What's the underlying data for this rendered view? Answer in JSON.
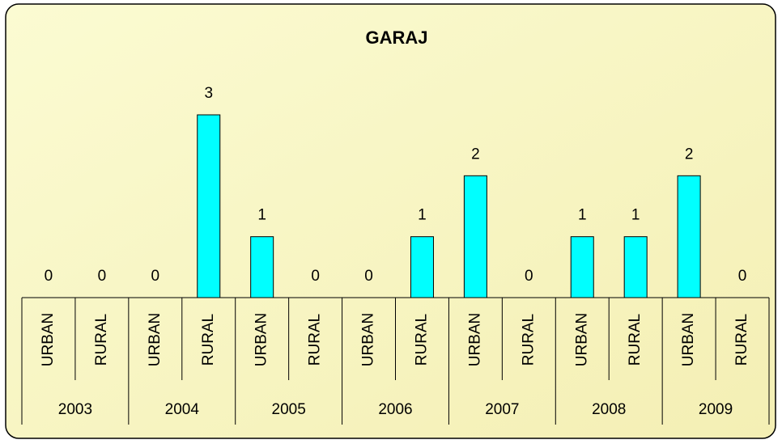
{
  "chart_data": {
    "type": "bar",
    "title": "GARAJ",
    "categories": [
      "URBAN",
      "RURAL",
      "URBAN",
      "RURAL",
      "URBAN",
      "RURAL",
      "URBAN",
      "RURAL",
      "URBAN",
      "RURAL",
      "URBAN",
      "RURAL",
      "URBAN",
      "RURAL"
    ],
    "groups": [
      "2003",
      "2004",
      "2005",
      "2006",
      "2007",
      "2008",
      "2009"
    ],
    "values": [
      0,
      0,
      0,
      3,
      1,
      0,
      0,
      1,
      2,
      0,
      1,
      1,
      2,
      0
    ],
    "color": "#00ffff",
    "ylim": [
      0,
      3
    ]
  }
}
